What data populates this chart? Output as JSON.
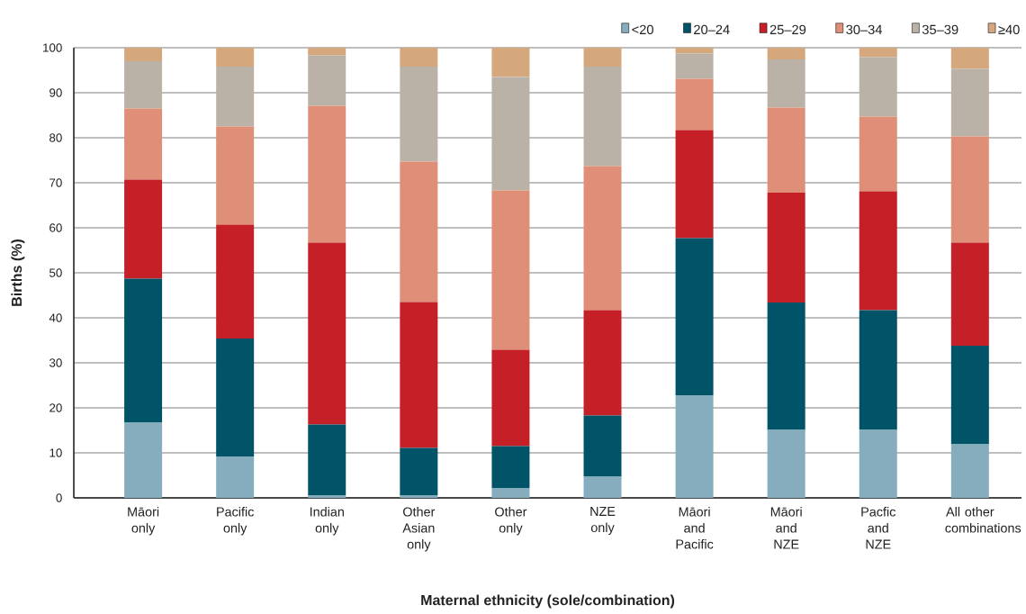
{
  "chart_data": {
    "type": "bar",
    "stacked": true,
    "xlabel": "Maternal ethnicity (sole/combination)",
    "ylabel": "Births (%)",
    "categories": [
      "Māori only",
      "Pacific only",
      "Indian only",
      "Other Asian only",
      "Other only",
      "NZE only",
      "Māori and Pacific",
      "Māori and NZE",
      "Pacfic and NZE",
      "All other combinations"
    ],
    "series": [
      {
        "name": "<20",
        "color": "#85adbd",
        "values": [
          16.7,
          9.2,
          0.5,
          0.5,
          2.2,
          4.7,
          22.8,
          15.1,
          15.1,
          11.9
        ]
      },
      {
        "name": "20–24",
        "color": "#015468",
        "values": [
          32.0,
          26.2,
          15.8,
          10.6,
          9.3,
          13.6,
          34.9,
          28.3,
          26.6,
          21.9
        ]
      },
      {
        "name": "25–29",
        "color": "#c52027",
        "values": [
          22.0,
          25.3,
          40.4,
          32.4,
          21.4,
          23.4,
          24.0,
          24.4,
          26.4,
          22.9
        ]
      },
      {
        "name": "30–34",
        "color": "#df8f77",
        "values": [
          15.8,
          21.8,
          30.4,
          31.2,
          35.4,
          32.0,
          11.4,
          18.9,
          16.6,
          23.6
        ]
      },
      {
        "name": "35–39",
        "color": "#bab2a7",
        "values": [
          10.5,
          13.3,
          11.2,
          21.1,
          25.2,
          22.1,
          5.6,
          10.7,
          13.2,
          15.0
        ]
      },
      {
        "name": "≥40",
        "color": "#d4a87c",
        "values": [
          3.0,
          4.2,
          1.7,
          4.2,
          6.5,
          4.2,
          1.3,
          2.6,
          2.1,
          4.7
        ]
      }
    ],
    "ylim": [
      0,
      100
    ],
    "yticks": [
      0,
      10,
      20,
      30,
      40,
      50,
      60,
      70,
      80,
      90,
      100
    ],
    "grid": "y",
    "legend": "top right"
  }
}
